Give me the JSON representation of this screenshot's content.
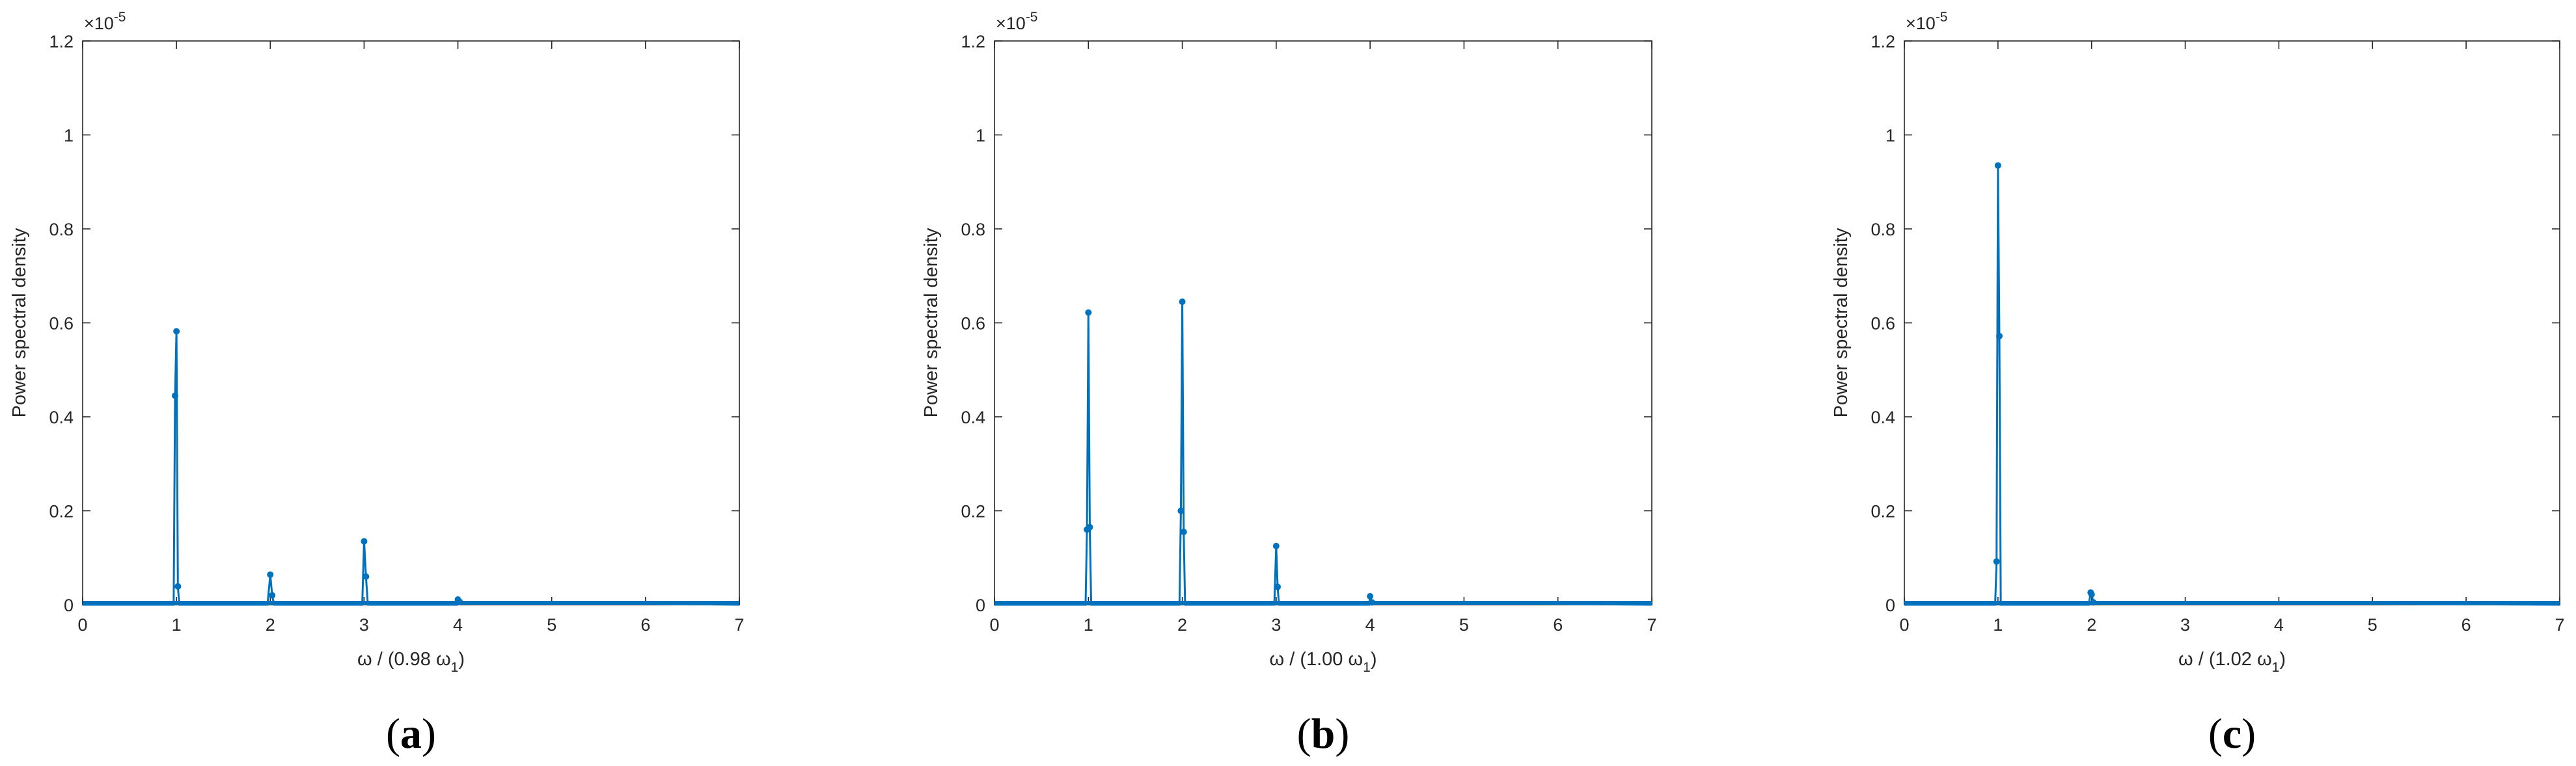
{
  "figure": {
    "panels": [
      {
        "caption_letter": "a",
        "xlabel_prefix": "ω / (0.98  ω",
        "xlabel_sub": "1",
        "xlabel_suffix": ")"
      },
      {
        "caption_letter": "b",
        "xlabel_prefix": "ω / (1.00  ω",
        "xlabel_sub": "1",
        "xlabel_suffix": ")"
      },
      {
        "caption_letter": "c",
        "xlabel_prefix": "ω / (1.02  ω",
        "xlabel_sub": "1",
        "xlabel_suffix": ")"
      }
    ],
    "caption_open": "(",
    "caption_close": ")",
    "exponent_base": "×10",
    "exponent_power": "-5"
  },
  "colors": {
    "series": "#0072BD",
    "axis": "#262626",
    "background": "#ffffff"
  },
  "chart_data": [
    {
      "type": "line",
      "xlabel": "ω / (0.98 ω1)",
      "ylabel": "Power spectral density",
      "xlim": [
        0,
        7
      ],
      "ylim": [
        0,
        1.2e-05
      ],
      "x_ticks": [
        0,
        1,
        2,
        3,
        4,
        5,
        6,
        7
      ],
      "y_ticks": [
        0,
        0.2,
        0.4,
        0.6,
        0.8,
        1,
        1.2
      ],
      "y_tick_labels": [
        "0",
        "0.2",
        "0.4",
        "0.6",
        "0.8",
        "1",
        "1.2"
      ],
      "y_multiplier": "×10^-5",
      "grid": false,
      "markers": true,
      "x": [
        0,
        0.97,
        0.985,
        1.0,
        1.015,
        1.03,
        1.97,
        2.0,
        2.02,
        2.04,
        2.98,
        3.0,
        3.02,
        3.04,
        3.99,
        4.0,
        4.02,
        7
      ],
      "y": [
        0,
        0,
        4.45e-06,
        5.82e-06,
        3.9e-07,
        0,
        0,
        6.4e-07,
        2e-07,
        0,
        0,
        1.35e-06,
        6e-07,
        0,
        0,
        1.1e-07,
        6e-08,
        0
      ]
    },
    {
      "type": "line",
      "xlabel": "ω / (1.00 ω1)",
      "ylabel": "Power spectral density",
      "xlim": [
        0,
        7
      ],
      "ylim": [
        0,
        1.2e-05
      ],
      "x_ticks": [
        0,
        1,
        2,
        3,
        4,
        5,
        6,
        7
      ],
      "y_ticks": [
        0,
        0.2,
        0.4,
        0.6,
        0.8,
        1,
        1.2
      ],
      "y_tick_labels": [
        "0",
        "0.2",
        "0.4",
        "0.6",
        "0.8",
        "1",
        "1.2"
      ],
      "y_multiplier": "×10^-5",
      "grid": false,
      "markers": true,
      "x": [
        0,
        0.97,
        0.985,
        1.0,
        1.015,
        1.03,
        1.97,
        1.985,
        2.0,
        2.015,
        2.03,
        2.98,
        3.0,
        3.015,
        3.03,
        3.99,
        4.0,
        4.02,
        7
      ],
      "y": [
        0,
        0,
        1.6e-06,
        6.22e-06,
        1.65e-06,
        0,
        0,
        2e-06,
        6.45e-06,
        1.55e-06,
        0,
        0,
        1.25e-06,
        3.8e-07,
        0,
        0,
        1.8e-07,
        5e-08,
        0
      ]
    },
    {
      "type": "line",
      "xlabel": "ω / (1.02 ω1)",
      "ylabel": "Power spectral density",
      "xlim": [
        0,
        7
      ],
      "ylim": [
        0,
        1.2e-05
      ],
      "x_ticks": [
        0,
        1,
        2,
        3,
        4,
        5,
        6,
        7
      ],
      "y_ticks": [
        0,
        0.2,
        0.4,
        0.6,
        0.8,
        1,
        1.2
      ],
      "y_tick_labels": [
        "0",
        "0.2",
        "0.4",
        "0.6",
        "0.8",
        "1",
        "1.2"
      ],
      "y_multiplier": "×10^-5",
      "grid": false,
      "markers": true,
      "x": [
        0,
        0.97,
        0.985,
        1.0,
        1.015,
        1.03,
        1.97,
        1.99,
        2.0,
        2.02,
        7
      ],
      "y": [
        0,
        0,
        9.2e-07,
        9.35e-06,
        5.72e-06,
        0,
        0,
        2.6e-07,
        2.2e-07,
        5e-08,
        0
      ]
    }
  ]
}
